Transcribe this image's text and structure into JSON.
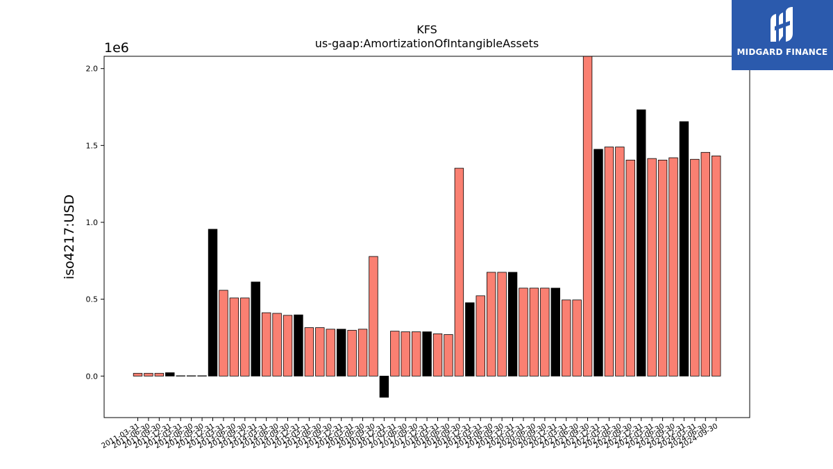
{
  "brand": {
    "name": "MIDGARD FINANCE",
    "icon": "midgard-logo-icon",
    "background": "#2b5aad"
  },
  "chart_data": {
    "type": "bar",
    "title": "KFS",
    "subtitle": "us-gaap:AmortizationOfIntangibleAssets",
    "ylabel": "iso4217:USD",
    "xlabel": "",
    "y_scale_label": "1e6",
    "ylim": [
      -0.27,
      2.08
    ],
    "yticks": [
      0.0,
      0.5,
      1.0,
      1.5,
      2.0
    ],
    "ytick_labels": [
      "0.0",
      "0.5",
      "1.0",
      "1.5",
      "2.0"
    ],
    "grid": false,
    "colors": {
      "quarterly": "#fa8072",
      "annual": "#000000"
    },
    "categories": [
      "2011-03-31",
      "2011-06-30",
      "2011-09-30",
      "2011-12-31",
      "2012-03-31",
      "2012-06-30",
      "2012-09-30",
      "2012-12-31",
      "2013-03-31",
      "2013-06-30",
      "2013-09-30",
      "2013-12-31",
      "2014-03-31",
      "2014-06-30",
      "2014-09-30",
      "2014-12-31",
      "2015-03-31",
      "2015-06-30",
      "2015-09-30",
      "2015-12-31",
      "2016-03-31",
      "2016-06-30",
      "2016-09-30",
      "2016-12-31",
      "2017-03-31",
      "2017-06-30",
      "2017-09-30",
      "2017-12-31",
      "2018-03-31",
      "2018-06-30",
      "2018-09-30",
      "2018-12-31",
      "2019-03-31",
      "2019-06-30",
      "2019-09-30",
      "2019-12-31",
      "2020-03-31",
      "2020-06-30",
      "2020-09-30",
      "2020-12-31",
      "2021-03-31",
      "2021-06-30",
      "2021-09-30",
      "2021-12-31",
      "2022-03-31",
      "2022-06-30",
      "2022-09-30",
      "2022-12-31",
      "2023-03-31",
      "2023-06-30",
      "2023-09-30",
      "2023-12-31",
      "2024-03-31",
      "2024-06-30",
      "2024-09-30"
    ],
    "values": [
      0.018,
      0.018,
      0.018,
      0.022,
      0.002,
      0.002,
      0.002,
      0.955,
      0.558,
      0.508,
      0.508,
      0.612,
      0.412,
      0.408,
      0.395,
      0.398,
      0.315,
      0.315,
      0.305,
      0.305,
      0.298,
      0.305,
      0.778,
      -0.138,
      0.292,
      0.288,
      0.288,
      0.288,
      0.275,
      0.27,
      1.352,
      0.477,
      0.522,
      0.675,
      0.675,
      0.675,
      0.572,
      0.572,
      0.572,
      0.572,
      0.495,
      0.495,
      2.09,
      1.475,
      1.49,
      1.49,
      1.405,
      1.732,
      1.415,
      1.405,
      1.42,
      1.655,
      1.41,
      1.455,
      1.432
    ],
    "series_type": [
      "q",
      "q",
      "q",
      "a",
      "q",
      "q",
      "q",
      "a",
      "q",
      "q",
      "q",
      "a",
      "q",
      "q",
      "q",
      "a",
      "q",
      "q",
      "q",
      "a",
      "q",
      "q",
      "q",
      "a",
      "q",
      "q",
      "q",
      "a",
      "q",
      "q",
      "q",
      "a",
      "q",
      "q",
      "q",
      "a",
      "q",
      "q",
      "q",
      "a",
      "q",
      "q",
      "q",
      "a",
      "q",
      "q",
      "q",
      "a",
      "q",
      "q",
      "q",
      "a",
      "q",
      "q",
      "q"
    ]
  }
}
